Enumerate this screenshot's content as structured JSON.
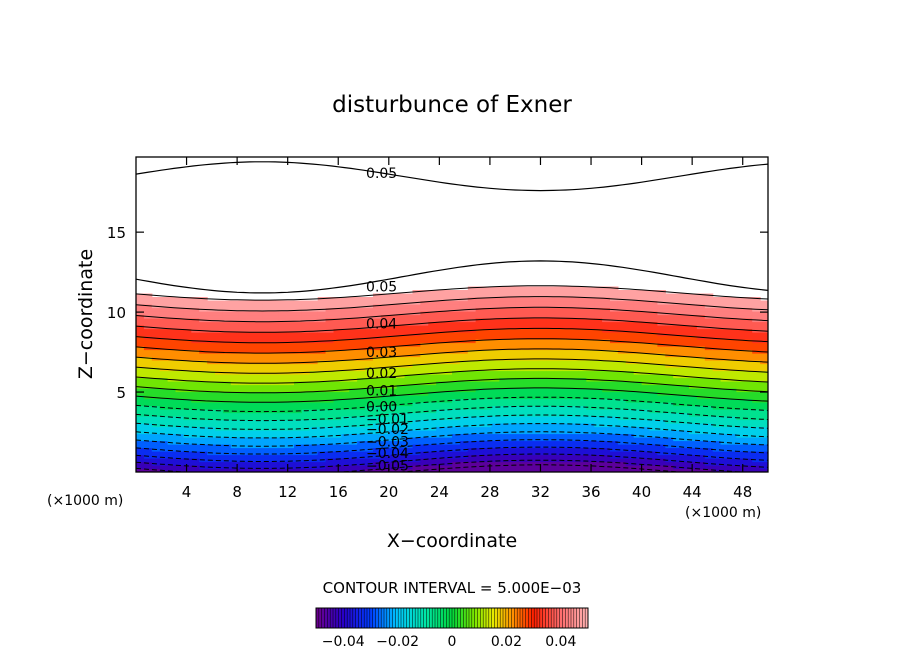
{
  "chart_data": {
    "type": "heatmap",
    "title": "disturbunce of Exner",
    "xlabel": "X−coordinate",
    "ylabel": "Z−coordinate",
    "x_unit_left": "(×1000 m)",
    "x_unit_right": "(×1000 m)",
    "xlim": [
      0,
      50
    ],
    "ylim": [
      0,
      19.7
    ],
    "x_ticks": [
      4,
      8,
      12,
      16,
      20,
      24,
      28,
      32,
      36,
      40,
      44,
      48
    ],
    "y_ticks": [
      5,
      10,
      15
    ],
    "contour_interval_text": "CONTOUR INTERVAL = 5.000E−03",
    "contour_interval": 0.005,
    "value_range": [
      -0.05,
      0.05
    ],
    "contour_labels": [
      {
        "text": "0.05",
        "x": 18.2,
        "y": 18.7
      },
      {
        "text": "0.05",
        "x": 18.2,
        "y": 11.6
      },
      {
        "text": "0.04",
        "x": 18.2,
        "y": 9.3
      },
      {
        "text": "0.03",
        "x": 18.2,
        "y": 7.5
      },
      {
        "text": "0.02",
        "x": 18.2,
        "y": 6.2
      },
      {
        "text": "0.01",
        "x": 18.2,
        "y": 5.1
      },
      {
        "text": "0.00",
        "x": 18.2,
        "y": 4.1
      },
      {
        "text": "−0.01",
        "x": 18.2,
        "y": 3.3
      },
      {
        "text": "−0.02",
        "x": 18.2,
        "y": 2.7
      },
      {
        "text": "−0.03",
        "x": 18.2,
        "y": 1.9
      },
      {
        "text": "−0.04",
        "x": 18.2,
        "y": 1.2
      },
      {
        "text": "−0.05",
        "x": 18.2,
        "y": 0.4
      }
    ],
    "colorbar": {
      "ticks": [
        {
          "value": -0.04,
          "text": "−0.04"
        },
        {
          "value": -0.02,
          "text": "−0.02"
        },
        {
          "value": 0,
          "text": "0"
        },
        {
          "value": 0.02,
          "text": "0.02"
        },
        {
          "value": 0.04,
          "text": "0.04"
        }
      ]
    }
  }
}
